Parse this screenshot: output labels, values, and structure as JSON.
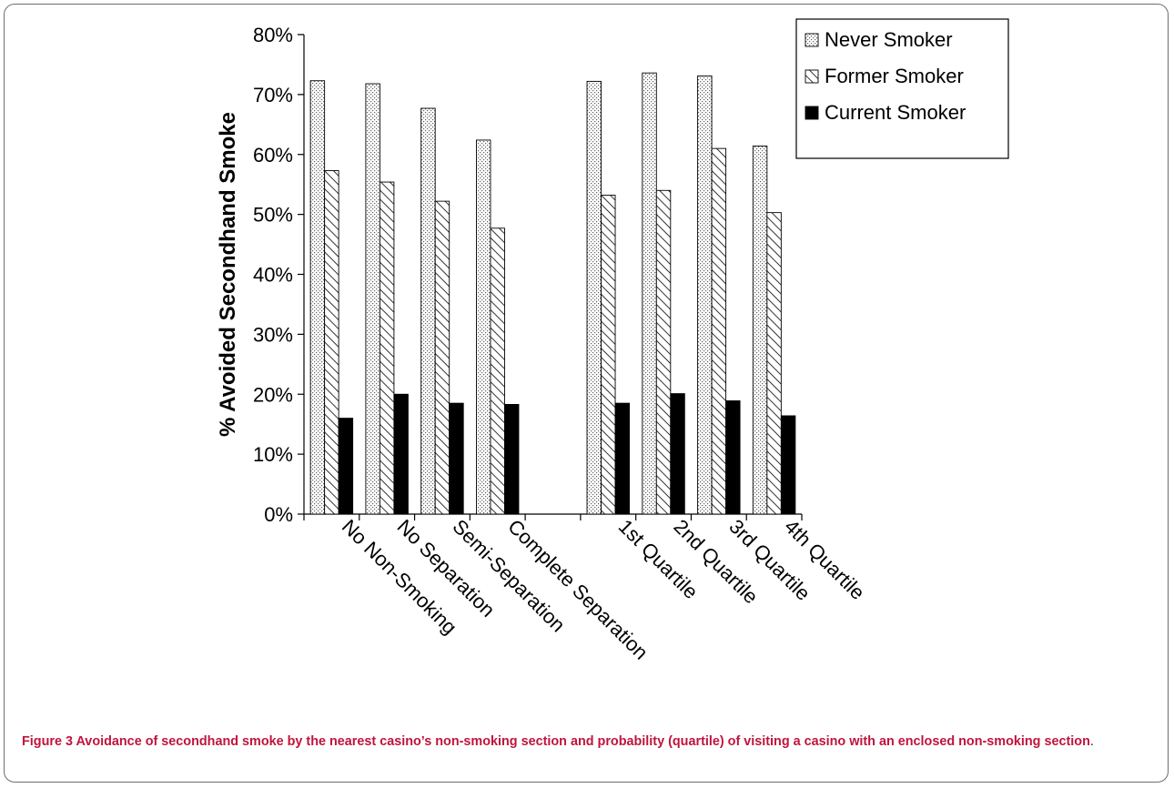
{
  "figure": {
    "label": "Figure 3",
    "caption": "Avoidance of secondhand smoke by the nearest casino’s non-smoking section and probability (quartile) of visiting a casino with an enclosed non-smoking section",
    "caption_tail": "."
  },
  "chart_data": {
    "type": "bar",
    "title": "",
    "xlabel": "",
    "ylabel": "% Avoided Secondhand Smoke",
    "ylim": [
      0,
      80
    ],
    "yticks": [
      "0%",
      "10%",
      "20%",
      "30%",
      "40%",
      "50%",
      "60%",
      "70%",
      "80%"
    ],
    "categories": [
      "No Non-Smoking",
      "No Separation",
      "Semi-Separation",
      "Complete Separation",
      "",
      "1st Quartile",
      "2nd Quartile",
      "3rd Quartile",
      "4th Quartile"
    ],
    "series": [
      {
        "name": "Never Smoker",
        "values": [
          72.3,
          71.8,
          67.7,
          62.4,
          null,
          72.2,
          73.6,
          73.1,
          61.4
        ]
      },
      {
        "name": "Former Smoker",
        "values": [
          57.3,
          55.4,
          52.2,
          47.7,
          null,
          53.2,
          54.0,
          61.0,
          50.3
        ]
      },
      {
        "name": "Current Smoker",
        "values": [
          16.0,
          20.0,
          18.5,
          18.3,
          null,
          18.5,
          20.1,
          18.9,
          16.4
        ]
      }
    ],
    "legend_position": "top-right",
    "grid": false,
    "colors": {
      "axis": "#000000",
      "current_fill": "#000000",
      "never_dot": "#5f5f5f",
      "former_hatch": "#000000"
    }
  }
}
